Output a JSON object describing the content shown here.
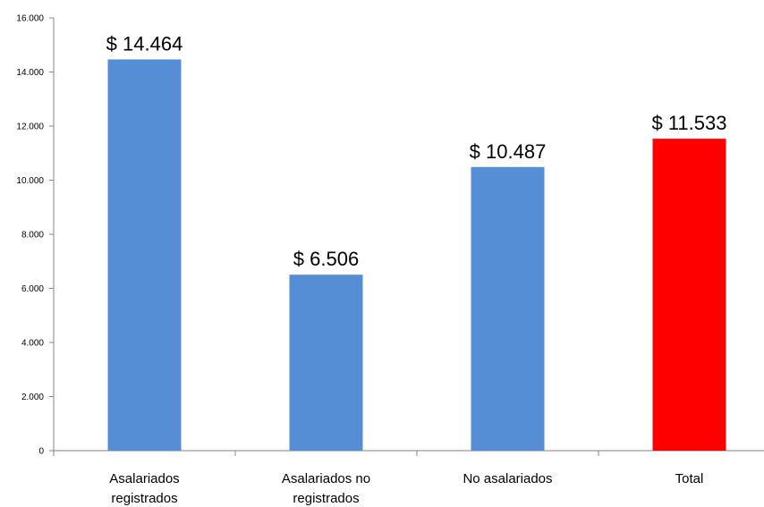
{
  "chart_data": {
    "type": "bar",
    "title": "",
    "categories": [
      [
        "Asalariados",
        "registrados"
      ],
      [
        "Asalariados no",
        "registrados"
      ],
      [
        "No asalariados"
      ],
      [
        "Total"
      ]
    ],
    "values": [
      14464,
      6506,
      10487,
      11533
    ],
    "data_labels": [
      "$ 14.464",
      "$ 6.506",
      "$ 10.487",
      "$ 11.533"
    ],
    "colors": [
      "#558ed5",
      "#558ed5",
      "#558ed5",
      "#ff0000"
    ],
    "yticks": [
      "0",
      "2.000",
      "4.000",
      "6.000",
      "8.000",
      "10.000",
      "12.000",
      "14.000",
      "16.000"
    ],
    "ylim": [
      0,
      16000
    ],
    "xlabel": "",
    "ylabel": "",
    "grid": false,
    "legend": "none"
  }
}
